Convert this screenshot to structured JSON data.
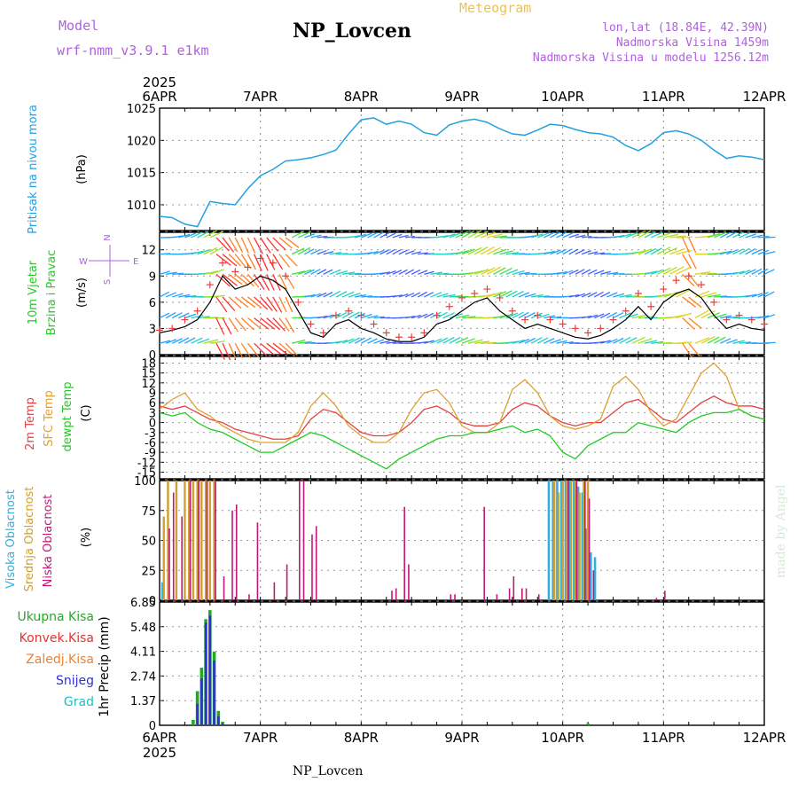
{
  "header": {
    "model_label": "Model",
    "model_name": "wrf-nmm_v3.9.1  e1km",
    "station": "NP_Lovcen",
    "meteogram": "Meteogram",
    "lonlat": "lon,lat (18.84E, 42.39N)",
    "elevation": "Nadmorska Visina 1459m",
    "model_elevation": "Nadmorska Visina u modelu 1256.12m"
  },
  "footer": {
    "station": "NP_Lovcen",
    "credit": "made by Angel"
  },
  "colors": {
    "pressure": "#22a0e0",
    "temp2m": "#e84040",
    "sfc_temp": "#e0a030",
    "dewpoint": "#22cc22",
    "high_cloud": "#30b0e0",
    "mid_cloud": "#d0a030",
    "low_cloud": "#c01878",
    "total_precip": "#22aa22",
    "conv_precip": "#e83030",
    "frozen_precip": "#f08030",
    "snow": "#3030d0",
    "graupel": "#20c0c0",
    "model": "#b060e0"
  },
  "chart_data": [
    {
      "type": "line",
      "panel": "pressure",
      "year": "2025",
      "x_top_labels": [
        "6APR",
        "7APR",
        "8APR",
        "9APR",
        "10APR",
        "11APR",
        "12APR"
      ],
      "ylabel_main": "Pritisak na nivou mora",
      "ylabel_units": "(hPa)",
      "ylim": [
        1006,
        1025
      ],
      "yticks": [
        "1010",
        "1015",
        "1020",
        "1025"
      ],
      "x": [
        0,
        3,
        6,
        9,
        12,
        15,
        18,
        21,
        24,
        27,
        30,
        33,
        36,
        39,
        42,
        45,
        48,
        51,
        54,
        57,
        60,
        63,
        66,
        69,
        72,
        75,
        78,
        81,
        84,
        87,
        90,
        93,
        96,
        99,
        102,
        105,
        108,
        111,
        114,
        117,
        120,
        123,
        126,
        129,
        132,
        135,
        138,
        141,
        144
      ],
      "values": [
        1008.2,
        1008.0,
        1007.0,
        1006.6,
        1010.5,
        1010.2,
        1010.0,
        1012.5,
        1014.5,
        1015.5,
        1016.8,
        1017.0,
        1017.3,
        1017.8,
        1018.5,
        1021.0,
        1023.2,
        1023.5,
        1022.5,
        1023.0,
        1022.5,
        1021.2,
        1020.8,
        1022.4,
        1023.0,
        1023.3,
        1022.8,
        1021.8,
        1021.0,
        1020.8,
        1021.6,
        1022.5,
        1022.3,
        1021.7,
        1021.2,
        1021.0,
        1020.5,
        1019.2,
        1018.4,
        1019.5,
        1021.2,
        1021.5,
        1021.0,
        1020.0,
        1018.5,
        1017.2,
        1017.6,
        1017.4,
        1017.0
      ]
    },
    {
      "type": "line",
      "panel": "wind",
      "ylabel_line1": "10m Vjetar",
      "ylabel_line2": "Brzina i Pravac",
      "ylabel_units": "(m/s)",
      "compass": {
        "north": "N",
        "west": "W",
        "east": "E",
        "south": "S"
      },
      "ylim": [
        0,
        14
      ],
      "yticks": [
        "0",
        "3",
        "6",
        "9",
        "12"
      ],
      "x": [
        0,
        3,
        6,
        9,
        12,
        15,
        18,
        21,
        24,
        27,
        30,
        33,
        36,
        39,
        42,
        45,
        48,
        51,
        54,
        57,
        60,
        63,
        66,
        69,
        72,
        75,
        78,
        81,
        84,
        87,
        90,
        93,
        96,
        99,
        102,
        105,
        108,
        111,
        114,
        117,
        120,
        123,
        126,
        129,
        132,
        135,
        138,
        141,
        144
      ],
      "speed": [
        2.5,
        2.8,
        3.2,
        4.0,
        6.0,
        9.0,
        7.5,
        8.0,
        9.0,
        8.5,
        7.5,
        5.0,
        2.5,
        2.0,
        3.5,
        4.0,
        3.0,
        2.5,
        1.8,
        1.5,
        1.5,
        2.0,
        3.5,
        4.0,
        5.0,
        6.0,
        6.5,
        5.0,
        4.0,
        3.0,
        3.5,
        3.0,
        2.5,
        2.0,
        1.8,
        2.2,
        3.0,
        4.0,
        5.5,
        4.0,
        6.0,
        7.0,
        7.5,
        6.5,
        4.5,
        3.0,
        3.5,
        3.0,
        2.8
      ],
      "gust": [
        2.8,
        3.0,
        4.0,
        5.0,
        8.0,
        10.5,
        9.5,
        10.0,
        11.0,
        10.5,
        9.0,
        6.0,
        3.5,
        2.5,
        4.5,
        5.0,
        4.5,
        3.5,
        2.5,
        2.0,
        2.0,
        2.5,
        4.5,
        5.5,
        6.5,
        7.0,
        7.5,
        6.5,
        5.0,
        4.0,
        4.5,
        4.0,
        3.5,
        3.0,
        2.5,
        3.0,
        4.0,
        5.0,
        7.0,
        5.5,
        7.5,
        8.5,
        9.0,
        8.0,
        6.0,
        4.0,
        4.5,
        4.0,
        3.5
      ]
    },
    {
      "type": "line",
      "panel": "temperature",
      "ylabel_2m": "2m Temp",
      "ylabel_sfc": "SFC Temp",
      "ylabel_dewpt": "dewpt Temp",
      "ylabel_units": "(C)",
      "ylim": [
        -17,
        20
      ],
      "yticks": [
        "-15",
        "-12",
        "-9",
        "-6",
        "-3",
        "0",
        "3",
        "6",
        "9",
        "12",
        "15",
        "18"
      ],
      "x": [
        0,
        3,
        6,
        9,
        12,
        15,
        18,
        21,
        24,
        27,
        30,
        33,
        36,
        39,
        42,
        45,
        48,
        51,
        54,
        57,
        60,
        63,
        66,
        69,
        72,
        75,
        78,
        81,
        84,
        87,
        90,
        93,
        96,
        99,
        102,
        105,
        108,
        111,
        114,
        117,
        120,
        123,
        126,
        129,
        132,
        135,
        138,
        141,
        144
      ],
      "series": [
        {
          "name": "2m Temp",
          "values": [
            5,
            4,
            5,
            3,
            1,
            0,
            -2,
            -3,
            -4,
            -5,
            -5,
            -4,
            1,
            4,
            3,
            0,
            -3,
            -4,
            -4,
            -3,
            0,
            4,
            5,
            3,
            0,
            -1,
            -1,
            0,
            4,
            6,
            5,
            2,
            0,
            -1,
            0,
            0,
            3,
            6,
            7,
            4,
            1,
            0,
            3,
            6,
            8,
            6,
            5,
            5,
            4
          ]
        },
        {
          "name": "SFC Temp",
          "values": [
            4,
            7,
            9,
            4,
            2,
            -1,
            -3,
            -5,
            -6,
            -6,
            -6,
            -3,
            5,
            9,
            5,
            -1,
            -4,
            -6,
            -6,
            -3,
            4,
            9,
            10,
            6,
            -1,
            -3,
            -3,
            0,
            10,
            13,
            9,
            2,
            -1,
            -2,
            -1,
            1,
            11,
            14,
            10,
            3,
            -1,
            1,
            8,
            15,
            18,
            14,
            4,
            2,
            1
          ]
        },
        {
          "name": "dewpt Temp",
          "values": [
            3,
            2,
            3,
            0,
            -2,
            -3,
            -5,
            -7,
            -9,
            -9,
            -7,
            -5,
            -3,
            -4,
            -6,
            -8,
            -10,
            -12,
            -14,
            -11,
            -9,
            -7,
            -5,
            -4,
            -4,
            -3,
            -3,
            -2,
            -1,
            -3,
            -2,
            -4,
            -9,
            -11,
            -7,
            -5,
            -3,
            -3,
            0,
            -1,
            -2,
            -3,
            0,
            2,
            3,
            3,
            4,
            2,
            1
          ]
        }
      ]
    },
    {
      "type": "bar",
      "panel": "cloud",
      "ylabel_high": "Visoka Oblacnost",
      "ylabel_mid": "Srednja Oblacnost",
      "ylabel_low": "Niska Oblacnost",
      "ylabel_units": "(%)",
      "ylim": [
        0,
        100
      ],
      "yticks": [
        "0",
        "25",
        "50",
        "75",
        "100"
      ],
      "series": [
        {
          "name": "Visoka Oblacnost",
          "points": [
            [
              1,
              15
            ],
            [
              93,
              100
            ],
            [
              94,
              100
            ],
            [
              95,
              100
            ],
            [
              96,
              100
            ],
            [
              97,
              100
            ],
            [
              98,
              100
            ],
            [
              99,
              100
            ],
            [
              100,
              95
            ],
            [
              101,
              90
            ],
            [
              102,
              60
            ],
            [
              103,
              40
            ],
            [
              104,
              36
            ]
          ]
        },
        {
          "name": "Srednja Oblacnost",
          "points": [
            [
              1,
              70
            ],
            [
              2,
              100
            ],
            [
              4,
              100
            ],
            [
              6,
              100
            ],
            [
              7,
              100
            ],
            [
              8,
              100
            ],
            [
              9,
              100
            ],
            [
              10,
              100
            ],
            [
              11,
              100
            ],
            [
              12,
              100
            ],
            [
              13,
              100
            ],
            [
              94,
              100
            ],
            [
              95,
              90
            ],
            [
              96,
              100
            ],
            [
              97,
              100
            ],
            [
              98,
              100
            ],
            [
              99,
              100
            ],
            [
              100,
              90
            ],
            [
              101,
              100
            ],
            [
              102,
              100
            ]
          ]
        },
        {
          "name": "Niska Oblacnost",
          "points": [
            [
              2,
              60
            ],
            [
              3,
              90
            ],
            [
              5,
              70
            ],
            [
              7,
              100
            ],
            [
              9,
              100
            ],
            [
              11,
              100
            ],
            [
              13,
              100
            ],
            [
              15,
              20
            ],
            [
              17,
              75
            ],
            [
              18,
              80
            ],
            [
              21,
              5
            ],
            [
              23,
              65
            ],
            [
              27,
              15
            ],
            [
              30,
              30
            ],
            [
              33,
              100
            ],
            [
              34,
              100
            ],
            [
              36,
              55
            ],
            [
              37,
              62
            ],
            [
              55,
              8
            ],
            [
              56,
              10
            ],
            [
              58,
              78
            ],
            [
              59,
              30
            ],
            [
              69,
              5
            ],
            [
              70,
              5
            ],
            [
              77,
              78
            ],
            [
              80,
              5
            ],
            [
              83,
              10
            ],
            [
              84,
              20
            ],
            [
              86,
              10
            ],
            [
              87,
              10
            ],
            [
              90,
              5
            ],
            [
              97,
              100
            ],
            [
              99,
              100
            ],
            [
              101,
              100
            ],
            [
              102,
              85
            ],
            [
              103,
              25
            ],
            [
              118,
              2
            ],
            [
              120,
              8
            ]
          ]
        }
      ]
    },
    {
      "type": "bar",
      "panel": "precipitation",
      "legend": [
        "Ukupna Kisa",
        "Konvek.Kisa",
        "Zaledj.Kisa",
        "Snijeg",
        "Grad"
      ],
      "ylabel": "1hr Precip (mm)",
      "ylim": [
        0,
        6.85
      ],
      "yticks": [
        "0",
        "1.37",
        "2.74",
        "4.11",
        "5.48",
        "6.85"
      ],
      "x_bottom_labels": [
        "6APR",
        "7APR",
        "8APR",
        "9APR",
        "10APR",
        "11APR",
        "12APR"
      ],
      "year_bottom": "2025",
      "series": [
        {
          "name": "Ukupna Kisa",
          "points": [
            [
              8,
              0.3
            ],
            [
              9,
              1.9
            ],
            [
              10,
              3.2
            ],
            [
              11,
              5.9
            ],
            [
              12,
              6.4
            ],
            [
              13,
              4.1
            ],
            [
              14,
              0.8
            ],
            [
              15,
              0.2
            ],
            [
              102,
              0.1
            ]
          ]
        },
        {
          "name": "Snijeg",
          "points": [
            [
              9,
              1.2
            ],
            [
              10,
              2.6
            ],
            [
              11,
              5.7
            ],
            [
              12,
              6.1
            ],
            [
              13,
              3.6
            ],
            [
              14,
              0.5
            ],
            [
              15,
              0.1
            ]
          ]
        }
      ]
    }
  ]
}
